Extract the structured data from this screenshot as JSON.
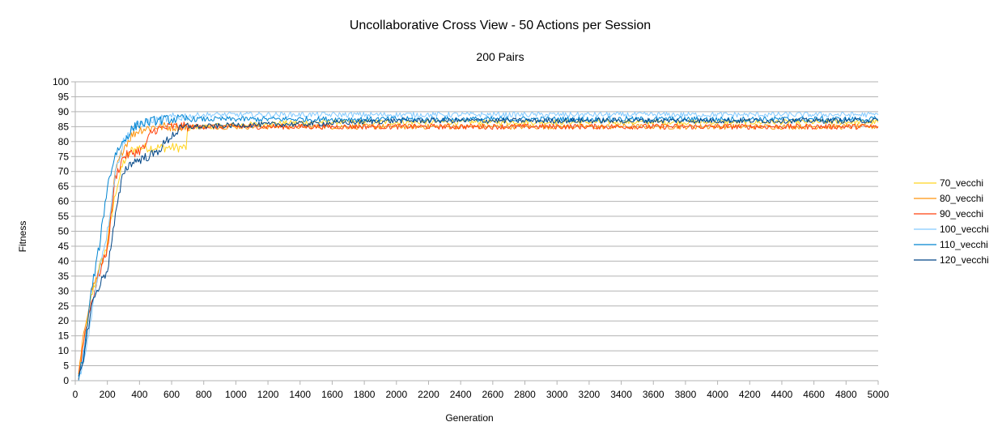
{
  "chart_data": {
    "type": "line",
    "title": "Uncollaborative Cross View - 50 Actions per Session",
    "subtitle": "200 Pairs",
    "xlabel": "Generation",
    "ylabel": "Fitness",
    "xlim": [
      0,
      5000
    ],
    "ylim": [
      0,
      100
    ],
    "xticks": [
      "0",
      "200",
      "400",
      "600",
      "800",
      "1000",
      "1200",
      "1400",
      "1600",
      "1800",
      "2000",
      "2200",
      "2400",
      "2600",
      "2800",
      "3000",
      "3200",
      "3400",
      "3600",
      "3800",
      "4000",
      "4200",
      "4400",
      "4600",
      "4800",
      "5000"
    ],
    "yticks": [
      "0",
      "5",
      "10",
      "15",
      "20",
      "25",
      "30",
      "35",
      "40",
      "45",
      "50",
      "55",
      "60",
      "65",
      "70",
      "75",
      "80",
      "85",
      "90",
      "95",
      "100"
    ],
    "grid": "horizontal",
    "legend_position": "right",
    "series": [
      {
        "name": "70_vecchi",
        "color": "#ffd320",
        "x": [
          20,
          60,
          100,
          150,
          200,
          250,
          300,
          350,
          400,
          450,
          500,
          550,
          600,
          650,
          690,
          700,
          720,
          800,
          1000,
          1200,
          1500,
          2000,
          3000,
          4000,
          5000
        ],
        "y": [
          1,
          15,
          28,
          38,
          45,
          63,
          73,
          77,
          78,
          78,
          78,
          78,
          78,
          78,
          78,
          83,
          85,
          85,
          85.5,
          86,
          86.5,
          86.5,
          86.5,
          86.5,
          86.5
        ]
      },
      {
        "name": "80_vecchi",
        "color": "#ff950e",
        "x": [
          20,
          60,
          100,
          150,
          200,
          250,
          300,
          350,
          400,
          450,
          500,
          600,
          700,
          800,
          1000,
          1500,
          2000,
          3000,
          4000,
          5000
        ],
        "y": [
          2,
          18,
          30,
          37,
          45,
          70,
          78,
          82,
          84,
          84.5,
          85,
          85,
          85,
          85,
          85,
          85,
          85,
          85,
          85,
          85
        ]
      },
      {
        "name": "90_vecchi",
        "color": "#ff420e",
        "x": [
          20,
          60,
          100,
          150,
          200,
          250,
          300,
          350,
          400,
          430,
          450,
          470,
          500,
          600,
          800,
          1000,
          1500,
          2000,
          3000,
          4000,
          5000
        ],
        "y": [
          1,
          16,
          26,
          36,
          44,
          68,
          75,
          76,
          77,
          78,
          80,
          83,
          84,
          85,
          85,
          85,
          85,
          85,
          85,
          85,
          85
        ]
      },
      {
        "name": "100_vecchi",
        "color": "#83caff",
        "x": [
          20,
          60,
          100,
          150,
          200,
          250,
          300,
          350,
          400,
          500,
          600,
          700,
          800,
          1000,
          1500,
          2000,
          3000,
          4000,
          5000
        ],
        "y": [
          0,
          8,
          22,
          38,
          50,
          70,
          80,
          84,
          86,
          87,
          88,
          88.5,
          89,
          89,
          89,
          89,
          89,
          89,
          89
        ]
      },
      {
        "name": "110_vecchi",
        "color": "#0084d1",
        "x": [
          20,
          60,
          100,
          150,
          200,
          250,
          300,
          350,
          400,
          500,
          600,
          800,
          1000,
          1500,
          2000,
          3000,
          4000,
          5000
        ],
        "y": [
          0,
          12,
          30,
          45,
          65,
          76,
          80,
          84,
          86,
          87,
          87.5,
          87.5,
          87.5,
          87.5,
          87.5,
          87.5,
          87.5,
          87.5
        ]
      },
      {
        "name": "120_vecchi",
        "color": "#004586",
        "x": [
          20,
          60,
          100,
          150,
          200,
          250,
          300,
          350,
          400,
          450,
          500,
          550,
          600,
          650,
          700,
          800,
          1000,
          1500,
          2000,
          3000,
          4000,
          5000
        ],
        "y": [
          0,
          10,
          25,
          32,
          37,
          55,
          70,
          73,
          74,
          75,
          76,
          79,
          82,
          84,
          85,
          85,
          85.5,
          86,
          87,
          87,
          87,
          87
        ]
      }
    ]
  }
}
